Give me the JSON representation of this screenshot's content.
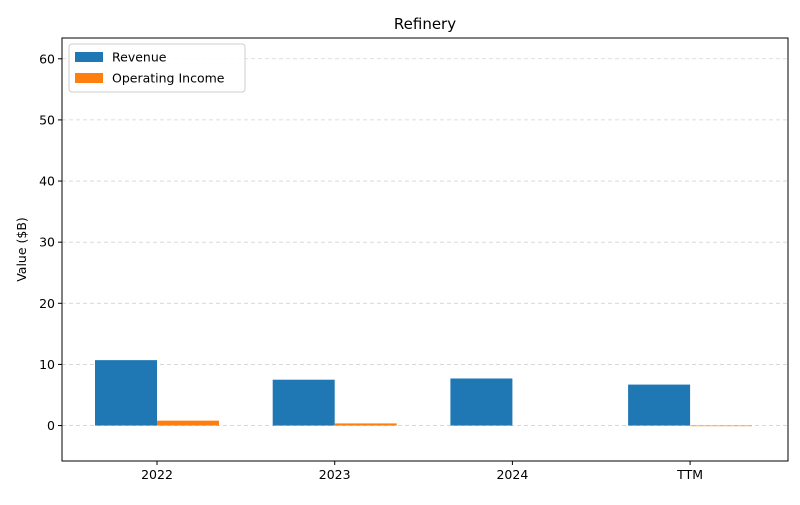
{
  "chart_data": {
    "type": "bar",
    "title": "Refinery",
    "xlabel": "",
    "ylabel": "Value ($B)",
    "categories": [
      "2022",
      "2023",
      "2024",
      "TTM"
    ],
    "series": [
      {
        "name": "Revenue",
        "color": "#1f77b4",
        "values": [
          10.7,
          7.5,
          7.7,
          6.7
        ]
      },
      {
        "name": "Operating Income",
        "color": "#ff7f0e",
        "values": [
          0.8,
          0.35,
          0.0,
          -0.1
        ]
      }
    ],
    "ylim": [
      -5.8,
      63.4
    ],
    "yticks": [
      0,
      10,
      20,
      30,
      40,
      50,
      60
    ],
    "grid": true,
    "legend_position": "top-left"
  }
}
